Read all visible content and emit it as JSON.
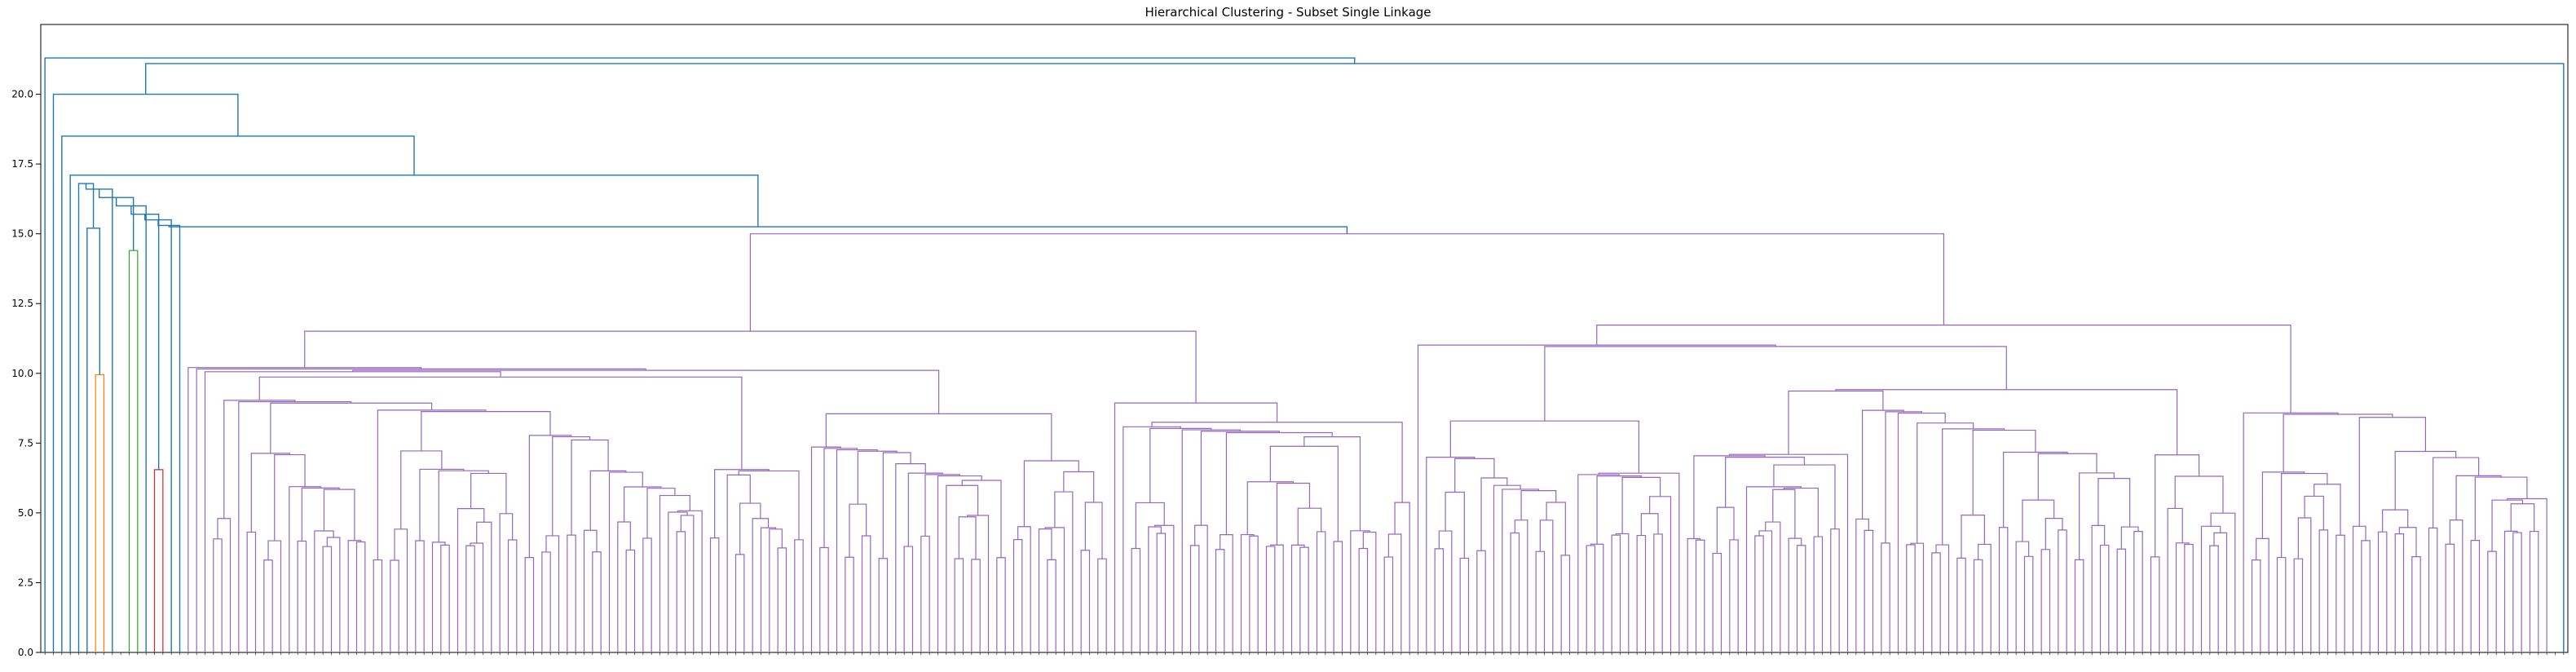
{
  "chart_data": {
    "type": "dendrogram",
    "title": "Hierarchical Clustering - Subset Single Linkage",
    "xlabel": "",
    "ylabel": "",
    "ylim": [
      0,
      22.5
    ],
    "yticks": [
      0.0,
      2.5,
      5.0,
      7.5,
      10.0,
      12.5,
      15.0,
      17.5,
      20.0
    ],
    "ytick_labels": [
      "0.0",
      "2.5",
      "5.0",
      "7.5",
      "10.0",
      "12.5",
      "15.0",
      "17.5",
      "20.0"
    ],
    "grid": false,
    "leaf_count": 300,
    "colors": {
      "above_threshold": "#1f77b4",
      "cluster_orange": "#ff7f0e",
      "cluster_green": "#2ca02c",
      "cluster_red": "#d62728",
      "cluster_purple": "#9467bd"
    },
    "top_merges": [
      {
        "height": 21.3,
        "description": "first leaf joined with remaining groups"
      },
      {
        "height": 21.1,
        "description": "main body joined with last leaf"
      },
      {
        "height": 20.0,
        "description": "left branch"
      },
      {
        "height": 18.5,
        "description": "inner branch"
      },
      {
        "height": 17.1,
        "description": "large cluster chain"
      }
    ],
    "small_clusters": [
      {
        "color": "orange",
        "height": 9.95,
        "leaves": 2
      },
      {
        "color": "green",
        "height": 14.4,
        "leaves": 2
      },
      {
        "color": "red",
        "height": 6.55,
        "leaves": 2
      }
    ],
    "purple_cluster": {
      "root_height": 15.0,
      "leaves": 283
    }
  }
}
